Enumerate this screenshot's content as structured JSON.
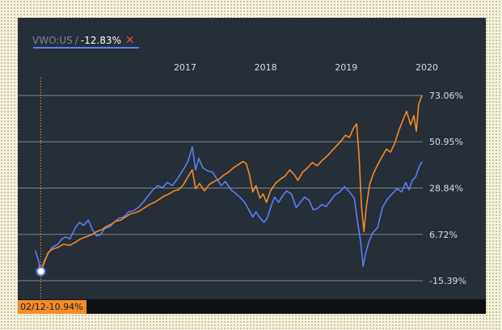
{
  "legend": {
    "ticker": "VWO:US",
    "separator": "/",
    "change": "-12.83%",
    "close_symbol": "✕"
  },
  "crosshair": {
    "date": "02/12",
    "value": "-10.94%"
  },
  "colors": {
    "background": "#262e38",
    "vwo": "#5b7ff2",
    "comparison": "#f28c28",
    "gridline": "#7c848e",
    "axis_text": "#d7dde4"
  },
  "chart_data": {
    "type": "line",
    "x_ticks": [
      "2017",
      "2018",
      "2019",
      "2020"
    ],
    "y_ticks": [
      "73.06%",
      "50.95%",
      "28.84%",
      "6.72%",
      "-15.39%"
    ],
    "ylim": [
      -15.39,
      73.06
    ],
    "xlim": [
      2016.12,
      2020.92
    ],
    "series": [
      {
        "name": "VWO:US",
        "color": "#5b7ff2",
        "points": [
          [
            2016.12,
            -1.0
          ],
          [
            2016.16,
            -5.5
          ],
          [
            2016.19,
            -10.94
          ],
          [
            2016.23,
            -6.0
          ],
          [
            2016.28,
            -2.5
          ],
          [
            2016.33,
            0.5
          ],
          [
            2016.4,
            2.0
          ],
          [
            2016.45,
            4.5
          ],
          [
            2016.5,
            5.5
          ],
          [
            2016.55,
            4.5
          ],
          [
            2016.62,
            10.0
          ],
          [
            2016.67,
            12.5
          ],
          [
            2016.72,
            11.0
          ],
          [
            2016.78,
            13.5
          ],
          [
            2016.83,
            9.0
          ],
          [
            2016.88,
            6.0
          ],
          [
            2016.93,
            6.5
          ],
          [
            2016.98,
            9.5
          ],
          [
            2017.05,
            10.5
          ],
          [
            2017.1,
            12.5
          ],
          [
            2017.16,
            14.5
          ],
          [
            2017.22,
            15.0
          ],
          [
            2017.28,
            17.5
          ],
          [
            2017.34,
            18.0
          ],
          [
            2017.4,
            19.5
          ],
          [
            2017.47,
            22.5
          ],
          [
            2017.53,
            25.5
          ],
          [
            2017.58,
            28.0
          ],
          [
            2017.64,
            30.0
          ],
          [
            2017.7,
            29.0
          ],
          [
            2017.76,
            31.5
          ],
          [
            2017.82,
            30.0
          ],
          [
            2017.88,
            33.0
          ],
          [
            2017.93,
            36.0
          ],
          [
            2017.98,
            39.0
          ],
          [
            2018.02,
            42.0
          ],
          [
            2018.07,
            48.5
          ],
          [
            2018.11,
            37.5
          ],
          [
            2018.15,
            43.0
          ],
          [
            2018.2,
            38.5
          ],
          [
            2018.26,
            37.0
          ],
          [
            2018.32,
            36.5
          ],
          [
            2018.37,
            33.5
          ],
          [
            2018.43,
            30.0
          ],
          [
            2018.48,
            32.0
          ],
          [
            2018.55,
            28.0
          ],
          [
            2018.6,
            26.5
          ],
          [
            2018.66,
            24.5
          ],
          [
            2018.72,
            22.0
          ],
          [
            2018.77,
            18.5
          ],
          [
            2018.82,
            15.0
          ],
          [
            2018.86,
            17.5
          ],
          [
            2018.91,
            14.5
          ],
          [
            2018.96,
            12.5
          ],
          [
            2019.0,
            14.5
          ],
          [
            2019.05,
            20.5
          ],
          [
            2019.09,
            24.5
          ],
          [
            2019.14,
            22.0
          ],
          [
            2019.19,
            25.0
          ],
          [
            2019.24,
            27.5
          ],
          [
            2019.3,
            26.0
          ],
          [
            2019.36,
            19.5
          ],
          [
            2019.41,
            22.0
          ],
          [
            2019.46,
            24.5
          ],
          [
            2019.52,
            23.0
          ],
          [
            2019.57,
            18.5
          ],
          [
            2019.62,
            19.0
          ],
          [
            2019.68,
            21.0
          ],
          [
            2019.73,
            20.0
          ],
          [
            2019.79,
            23.0
          ],
          [
            2019.84,
            25.5
          ],
          [
            2019.9,
            27.0
          ],
          [
            2019.96,
            29.5
          ],
          [
            2020.02,
            27.0
          ],
          [
            2020.08,
            24.0
          ],
          [
            2020.12,
            13.0
          ],
          [
            2020.16,
            3.0
          ],
          [
            2020.19,
            -8.5
          ],
          [
            2020.22,
            -2.5
          ],
          [
            2020.26,
            3.0
          ],
          [
            2020.31,
            7.5
          ],
          [
            2020.37,
            10.0
          ],
          [
            2020.43,
            19.5
          ],
          [
            2020.49,
            23.5
          ],
          [
            2020.55,
            26.0
          ],
          [
            2020.61,
            28.5
          ],
          [
            2020.67,
            27.0
          ],
          [
            2020.72,
            31.5
          ],
          [
            2020.76,
            28.0
          ],
          [
            2020.8,
            32.5
          ],
          [
            2020.84,
            34.0
          ],
          [
            2020.88,
            38.5
          ],
          [
            2020.92,
            41.5
          ]
        ]
      },
      {
        "name": "",
        "color": "#f28c28",
        "points": [
          [
            2016.17,
            -8.0
          ],
          [
            2016.19,
            -10.94
          ],
          [
            2016.23,
            -7.0
          ],
          [
            2016.28,
            -2.0
          ],
          [
            2016.33,
            -0.5
          ],
          [
            2016.4,
            0.5
          ],
          [
            2016.47,
            2.0
          ],
          [
            2016.55,
            1.5
          ],
          [
            2016.62,
            3.0
          ],
          [
            2016.68,
            4.5
          ],
          [
            2016.75,
            5.5
          ],
          [
            2016.82,
            6.5
          ],
          [
            2016.88,
            8.0
          ],
          [
            2016.95,
            9.0
          ],
          [
            2017.0,
            10.5
          ],
          [
            2017.06,
            11.5
          ],
          [
            2017.12,
            13.0
          ],
          [
            2017.18,
            13.5
          ],
          [
            2017.24,
            15.0
          ],
          [
            2017.3,
            16.5
          ],
          [
            2017.36,
            17.0
          ],
          [
            2017.42,
            18.0
          ],
          [
            2017.48,
            19.5
          ],
          [
            2017.54,
            21.0
          ],
          [
            2017.6,
            22.0
          ],
          [
            2017.66,
            23.5
          ],
          [
            2017.72,
            25.0
          ],
          [
            2017.78,
            26.0
          ],
          [
            2017.84,
            27.5
          ],
          [
            2017.9,
            28.0
          ],
          [
            2017.96,
            30.5
          ],
          [
            2018.02,
            34.5
          ],
          [
            2018.07,
            37.5
          ],
          [
            2018.11,
            28.5
          ],
          [
            2018.16,
            31.0
          ],
          [
            2018.22,
            27.5
          ],
          [
            2018.28,
            30.5
          ],
          [
            2018.34,
            32.0
          ],
          [
            2018.4,
            33.0
          ],
          [
            2018.46,
            35.0
          ],
          [
            2018.52,
            36.5
          ],
          [
            2018.58,
            38.5
          ],
          [
            2018.64,
            40.0
          ],
          [
            2018.7,
            41.5
          ],
          [
            2018.74,
            40.5
          ],
          [
            2018.78,
            35.0
          ],
          [
            2018.82,
            27.0
          ],
          [
            2018.86,
            30.0
          ],
          [
            2018.91,
            24.0
          ],
          [
            2018.95,
            26.0
          ],
          [
            2018.99,
            22.0
          ],
          [
            2019.04,
            27.5
          ],
          [
            2019.1,
            31.0
          ],
          [
            2019.16,
            33.0
          ],
          [
            2019.22,
            34.5
          ],
          [
            2019.28,
            37.5
          ],
          [
            2019.34,
            35.0
          ],
          [
            2019.38,
            32.5
          ],
          [
            2019.44,
            36.5
          ],
          [
            2019.5,
            38.5
          ],
          [
            2019.56,
            41.0
          ],
          [
            2019.62,
            39.5
          ],
          [
            2019.68,
            42.0
          ],
          [
            2019.74,
            44.0
          ],
          [
            2019.8,
            46.5
          ],
          [
            2019.86,
            49.0
          ],
          [
            2019.92,
            51.5
          ],
          [
            2019.97,
            54.0
          ],
          [
            2020.02,
            53.0
          ],
          [
            2020.07,
            57.5
          ],
          [
            2020.11,
            59.5
          ],
          [
            2020.14,
            44.0
          ],
          [
            2020.17,
            20.0
          ],
          [
            2020.2,
            8.0
          ],
          [
            2020.23,
            20.0
          ],
          [
            2020.27,
            30.5
          ],
          [
            2020.32,
            36.0
          ],
          [
            2020.37,
            40.0
          ],
          [
            2020.42,
            43.5
          ],
          [
            2020.48,
            47.5
          ],
          [
            2020.53,
            46.0
          ],
          [
            2020.58,
            50.0
          ],
          [
            2020.63,
            56.0
          ],
          [
            2020.68,
            61.0
          ],
          [
            2020.73,
            65.5
          ],
          [
            2020.78,
            59.0
          ],
          [
            2020.82,
            63.5
          ],
          [
            2020.85,
            56.0
          ],
          [
            2020.88,
            69.0
          ],
          [
            2020.92,
            73.06
          ]
        ]
      }
    ],
    "crosshair_x": 2016.19,
    "crosshair_y": -10.94,
    "grid": true,
    "legend_position": "top-left"
  }
}
